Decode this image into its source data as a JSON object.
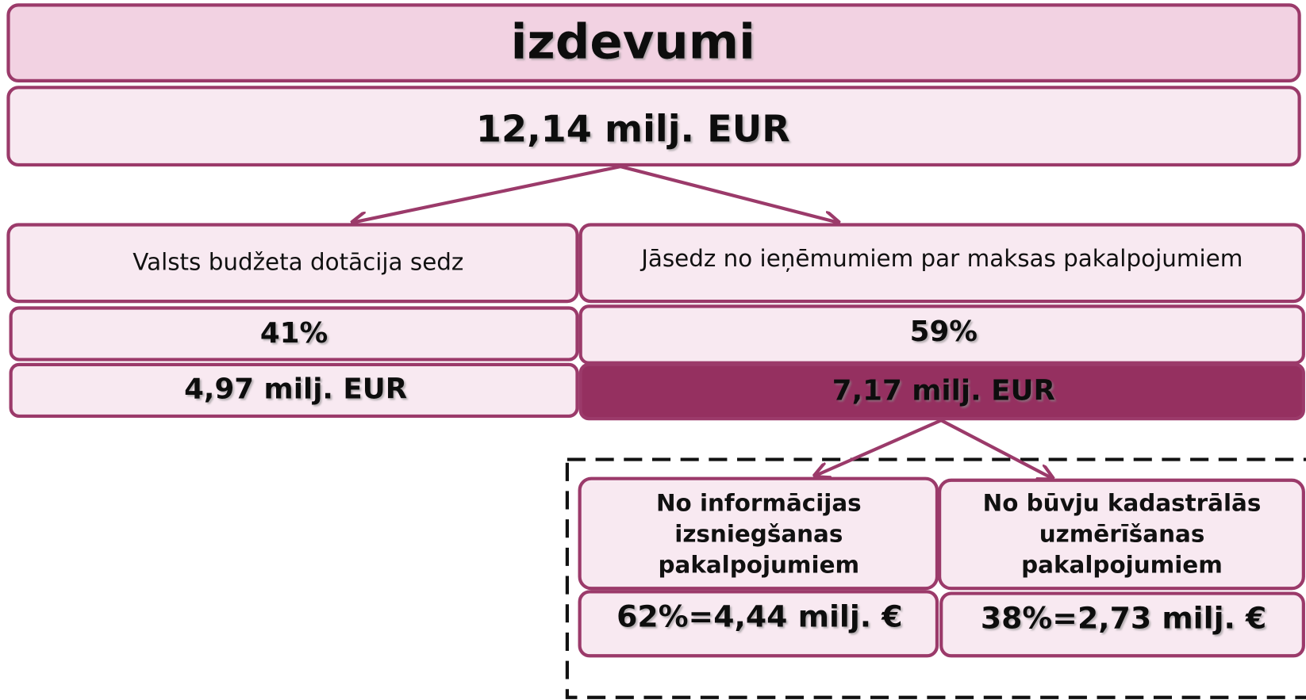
{
  "header": {
    "title": "izdevumi",
    "total": "12,14 milj. EUR"
  },
  "branches": [
    {
      "label": "Valsts budžeta dotācija sedz",
      "share": "41%",
      "amount": "4,97 milj. EUR"
    },
    {
      "label": "Jāsedz no ieņēmumiem par maksas pakalpojumiem",
      "share": "59%",
      "amount": "7,17 milj. EUR"
    }
  ],
  "sub_branches": [
    {
      "lines": [
        "No informācijas",
        "izsniegšanas",
        "pakalpojumiem"
      ],
      "amount": "62%=4,44 milj. €"
    },
    {
      "lines": [
        "No būvju kadastrālās",
        "uzmērīšanas",
        "pakalpojumiem"
      ],
      "amount": "38%=2,73 milj. €"
    }
  ]
}
